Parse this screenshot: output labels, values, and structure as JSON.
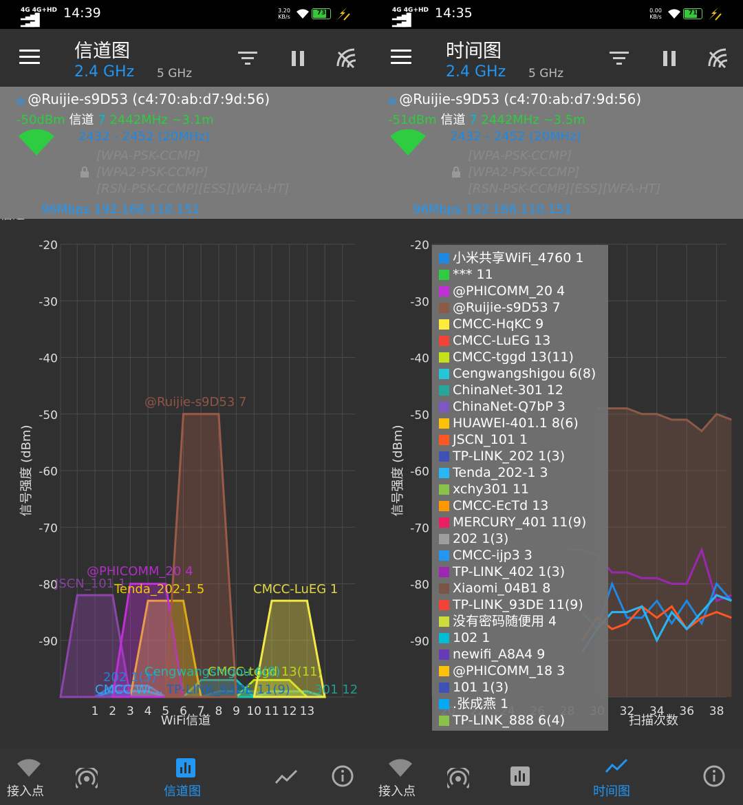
{
  "left": {
    "status": {
      "net1": "4G",
      "net2": "4G+HD",
      "time": "14:39",
      "speed_value": "3.20",
      "speed_unit": "KB/s",
      "battery": "73"
    },
    "header": {
      "title": "信道图",
      "band_24": "2.4 GHz",
      "band_5": "5 GHz"
    },
    "ap": {
      "name": "@Ruijie-s9D53 (c4:70:ab:d7:9d:56)",
      "dbm": "-50dBm",
      "channel_label": "信道",
      "channel": "7",
      "freq": "2442MHz",
      "distance": "~3.1m",
      "range": "2432 - 2452 (20MHz)",
      "cap1": "[WPA-PSK-CCMP]",
      "cap2": "[WPA2-PSK-CCMP]",
      "cap3": "[RSN-PSK-CCMP][ESS][WFA-HT]",
      "link": "96Mbps 192.168.110.151"
    },
    "nav": {
      "ap": "接入点",
      "channel": "信道图"
    }
  },
  "right": {
    "status": {
      "net1": "4G",
      "net2": "4G+HD",
      "time": "14:35",
      "speed_value": "0.00",
      "speed_unit": "KB/s",
      "battery": "71"
    },
    "header": {
      "title": "时间图",
      "band_24": "2.4 GHz",
      "band_5": "5 GHz"
    },
    "ap": {
      "name": "@Ruijie-s9D53 (c4:70:ab:d7:9d:56)",
      "dbm": "-51dBm",
      "channel_label": "信道",
      "channel": "7",
      "freq": "2442MHz",
      "distance": "~3.5m",
      "range": "2432 - 2452 (20MHz)",
      "cap1": "[WPA-PSK-CCMP]",
      "cap2": "[WPA2-PSK-CCMP]",
      "cap3": "[RSN-PSK-CCMP][ESS][WFA-HT]",
      "link": "96Mbps 192.168.110.151"
    },
    "nav": {
      "ap": "接入点",
      "time": "时间图"
    }
  },
  "chart_data": [
    {
      "type": "area",
      "ylabel": "信号强度 (dBm)",
      "xlabel": "WiFi信道",
      "ylim": [
        -100,
        -20
      ],
      "y_ticks": [
        "-20",
        "-30",
        "-40",
        "-50",
        "-60",
        "-70",
        "-80",
        "-90"
      ],
      "x_ticks": [
        "1",
        "2",
        "3",
        "4",
        "5",
        "6",
        "7",
        "8",
        "9",
        "10",
        "11",
        "12",
        "13"
      ],
      "series": [
        {
          "name": "JSCN_101 1",
          "channel": 1,
          "dbm": -82,
          "color": "#8e44ad"
        },
        {
          "name": "@PHICOMM_20 4",
          "channel": 4,
          "dbm": -80,
          "color": "#c12fd6"
        },
        {
          "name": "Tenda_202-1 5",
          "channel": 5,
          "dbm": -83,
          "color": "#ffd700"
        },
        {
          "name": "@Ruijie-s9D53 7",
          "channel": 7,
          "dbm": -50,
          "color": "#9b5a48"
        },
        {
          "name": "CMCC-LuEG 1",
          "channel": 12,
          "dbm": -83,
          "color": "#f5e94a"
        },
        {
          "name": "CMCC-tggd 13(11)",
          "channel": 11,
          "dbm": -97,
          "color": "#c6e01a"
        },
        {
          "name": "Cengwangshigou 6(8)",
          "channel": 8,
          "dbm": -97,
          "color": "#17c3b2"
        },
        {
          "name": "202 1(3)",
          "channel": 3,
          "dbm": -98,
          "color": "#1e88e5"
        },
        {
          "name": "CMCC-Wr...",
          "channel": 3,
          "dbm": -99,
          "color": "#29b6f6"
        },
        {
          "name": "TP-LINK_93DE 11(9)",
          "channel": 9,
          "dbm": -99,
          "color": "#1565c0"
        },
        {
          "name": "...301 12",
          "channel": 12,
          "dbm": -99,
          "color": "#26a69a"
        }
      ]
    },
    {
      "type": "line",
      "ylabel": "信号强度 (dBm)",
      "xlabel": "扫描次数",
      "ylim": [
        -100,
        -20
      ],
      "y_ticks": [
        "-20",
        "-30",
        "-40",
        "-50",
        "-60",
        "-70",
        "-80",
        "-90"
      ],
      "x_ticks": [
        "20",
        "22",
        "24",
        "26",
        "28",
        "30",
        "32",
        "34",
        "36",
        "38"
      ],
      "legend": [
        {
          "name": "小米共享WiFi_4760 1",
          "color": "#1e88e5"
        },
        {
          "name": "*** 11",
          "color": "#2ecc40"
        },
        {
          "name": "@PHICOMM_20 4",
          "color": "#c12fd6"
        },
        {
          "name": "@Ruijie-s9D53 7",
          "color": "#8d5a48"
        },
        {
          "name": "CMCC-HqKC 9",
          "color": "#ffeb3b"
        },
        {
          "name": "CMCC-LuEG 13",
          "color": "#f44336"
        },
        {
          "name": "CMCC-tggd 13(11)",
          "color": "#c6e01a"
        },
        {
          "name": "Cengwangshigou 6(8)",
          "color": "#26c6da"
        },
        {
          "name": "ChinaNet-301 12",
          "color": "#26a69a"
        },
        {
          "name": "ChinaNet-Q7bP 3",
          "color": "#7e57c2"
        },
        {
          "name": "HUAWEI-401.1 8(6)",
          "color": "#ffc107"
        },
        {
          "name": "JSCN_101 1",
          "color": "#ff5722"
        },
        {
          "name": "TP-LINK_202 1(3)",
          "color": "#3f51b5"
        },
        {
          "name": "Tenda_202-1 3",
          "color": "#29b6f6"
        },
        {
          "name": "xchy301 11",
          "color": "#8bc34a"
        },
        {
          "name": "CMCC-EcTd 13",
          "color": "#ff9800"
        },
        {
          "name": "MERCURY_401 11(9)",
          "color": "#e91e63"
        },
        {
          "name": "202 1(3)",
          "color": "#9e9e9e"
        },
        {
          "name": "CMCC-ijp3 3",
          "color": "#2196f3"
        },
        {
          "name": "TP-LINK_402 1(3)",
          "color": "#9c27b0"
        },
        {
          "name": "Xiaomi_04B1 8",
          "color": "#795548"
        },
        {
          "name": "TP-LINK_93DE 11(9)",
          "color": "#f44336"
        },
        {
          "name": "没有密码随便用 4",
          "color": "#cddc39"
        },
        {
          "name": "102 1",
          "color": "#00bcd4"
        },
        {
          "name": "newifi_A8A4 9",
          "color": "#673ab7"
        },
        {
          "name": "@PHICOMM_18 3",
          "color": "#ffc107"
        },
        {
          "name": "101 1(3)",
          "color": "#3f51b5"
        },
        {
          "name": ".张成燕 1",
          "color": "#03a9f4"
        },
        {
          "name": "TP-LINK_888 6(4)",
          "color": "#8bc34a"
        }
      ],
      "series": [
        {
          "name": "@Ruijie-s9D53 7",
          "color": "#8d5a48",
          "x": [
            30,
            31,
            32,
            33,
            34,
            35,
            36,
            37,
            38,
            39
          ],
          "y": [
            -49,
            -49,
            -49,
            -50,
            -50,
            -51,
            -51,
            -53,
            -50,
            -51
          ]
        },
        {
          "name": "TP-LINK_402 1(3)",
          "color": "#9c27b0",
          "x": [
            28,
            29,
            30,
            31,
            32,
            33,
            34,
            35,
            36,
            37,
            38,
            39
          ],
          "y": [
            -74,
            -74,
            -75,
            -78,
            -78,
            -79,
            -79,
            -80,
            -80,
            -74,
            -83,
            -82
          ]
        },
        {
          "name": "小米共享WiFi_4760 1",
          "color": "#1e88e5",
          "x": [
            29,
            30,
            31,
            32,
            33,
            34,
            35,
            36,
            37,
            38,
            39
          ],
          "y": [
            -85,
            -88,
            -80,
            -86,
            -86,
            -83,
            -87,
            -83,
            -87,
            -80,
            -83
          ]
        },
        {
          "name": "JSCN_101 1",
          "color": "#ff5722",
          "x": [
            29,
            30,
            31,
            32,
            33,
            34,
            35,
            36,
            37,
            38,
            39
          ],
          "y": [
            -90,
            -86,
            -88,
            -87,
            -84,
            -86,
            -84,
            -88,
            -86,
            -85,
            -86
          ]
        },
        {
          "name": "Tenda_202-1 3",
          "color": "#29b6f6",
          "x": [
            29,
            30,
            31,
            32,
            33,
            34,
            35,
            36,
            37,
            38,
            39
          ],
          "y": [
            -92,
            -88,
            -85,
            -85,
            -84,
            -90,
            -85,
            -88,
            -85,
            -82,
            -83
          ]
        }
      ]
    }
  ]
}
